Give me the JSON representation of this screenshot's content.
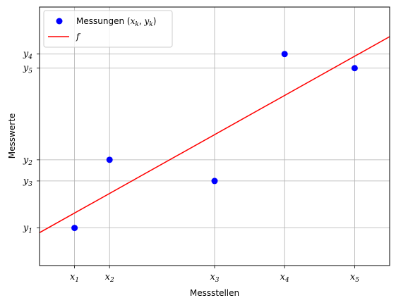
{
  "chart_data": {
    "type": "scatter",
    "title": "",
    "xlabel": "Messstellen",
    "ylabel": "Messwerte",
    "xlim": [
      0.5,
      5.5
    ],
    "ylim": [
      0.0,
      5.5
    ],
    "grid": true,
    "legend_position": "top-left",
    "x_ticks": [
      {
        "value": 1.0,
        "label": "x",
        "sub": "1"
      },
      {
        "value": 1.5,
        "label": "x",
        "sub": "2"
      },
      {
        "value": 3.0,
        "label": "x",
        "sub": "3"
      },
      {
        "value": 4.0,
        "label": "x",
        "sub": "4"
      },
      {
        "value": 5.0,
        "label": "x",
        "sub": "5"
      }
    ],
    "y_ticks": [
      {
        "value": 0.8,
        "label": "y",
        "sub": "1"
      },
      {
        "value": 1.8,
        "label": "y",
        "sub": "3"
      },
      {
        "value": 2.25,
        "label": "y",
        "sub": "2"
      },
      {
        "value": 4.2,
        "label": "y",
        "sub": "5"
      },
      {
        "value": 4.5,
        "label": "y",
        "sub": "4"
      }
    ],
    "series": [
      {
        "name": "Messungen (x_k, y_k)",
        "legend_prefix": "Messungen (",
        "legend_math": "x",
        "legend_sub1": "k",
        "legend_mid": ", ",
        "legend_math2": "y",
        "legend_sub2": "k",
        "legend_suffix": ")",
        "kind": "scatter",
        "color": "#0000ff",
        "x": [
          1.0,
          1.5,
          3.0,
          4.0,
          5.0
        ],
        "y": [
          0.8,
          2.25,
          1.8,
          4.5,
          4.2
        ]
      },
      {
        "name": "f",
        "kind": "line",
        "color": "#ff0000",
        "x": [
          0.5,
          5.5
        ],
        "y": [
          0.7,
          4.87
        ]
      }
    ]
  }
}
